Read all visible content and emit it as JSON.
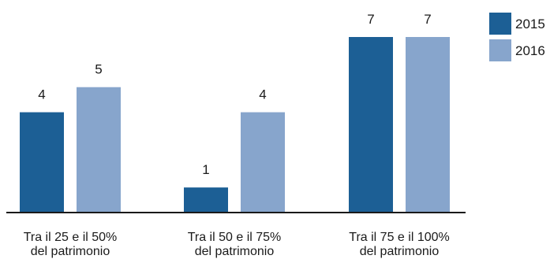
{
  "chart_data": {
    "type": "bar",
    "categories": [
      [
        "Tra il 25 e il 50%",
        "del patrimonio"
      ],
      [
        "Tra il 50 e il 75%",
        "del patrimonio"
      ],
      [
        "Tra il 75 e il 100%",
        "del patrimonio"
      ]
    ],
    "series": [
      {
        "name": "2015",
        "values": [
          4,
          1,
          7
        ],
        "color": "#1c5f95"
      },
      {
        "name": "2016",
        "values": [
          5,
          4,
          7
        ],
        "color": "#87a5cc"
      }
    ],
    "ylim": [
      0,
      8
    ],
    "axis_color": "#1a1a1a",
    "grid": false,
    "legend": {
      "placement": "top-right"
    }
  }
}
